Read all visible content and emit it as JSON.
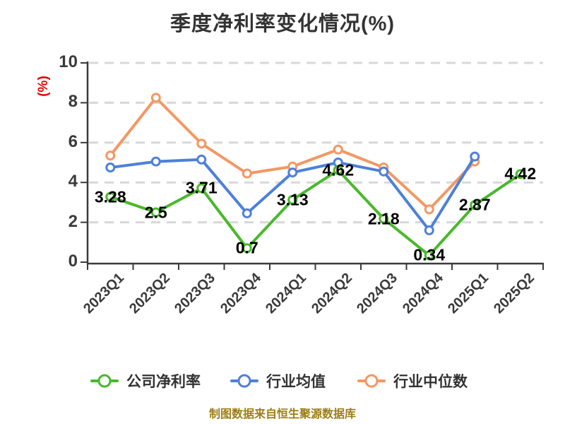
{
  "chart_data": {
    "type": "line",
    "title": "季度净利率变化情况(%)",
    "y_axis_label": "(%)",
    "footer": "制图数据来自恒生聚源数据库",
    "categories": [
      "2023Q1",
      "2023Q2",
      "2023Q3",
      "2023Q4",
      "2024Q1",
      "2024Q2",
      "2024Q3",
      "2024Q4",
      "2025Q1",
      "2025Q2"
    ],
    "series": [
      {
        "name": "公司净利率",
        "color": "#48b92b",
        "values": [
          3.28,
          2.5,
          3.71,
          0.7,
          3.13,
          4.62,
          2.18,
          0.34,
          2.87,
          4.42
        ],
        "data_labels": [
          "3.28",
          "2.5",
          "3.71",
          "0.7",
          "3.13",
          "4.62",
          "2.18",
          "0.34",
          "2.87",
          "4.42"
        ]
      },
      {
        "name": "行业均值",
        "color": "#4d80da",
        "values": [
          4.75,
          5.05,
          5.15,
          2.45,
          4.5,
          5.0,
          4.55,
          1.6,
          5.3,
          null
        ],
        "data_labels": null
      },
      {
        "name": "行业中位数",
        "color": "#f49763",
        "values": [
          5.35,
          8.25,
          5.95,
          4.45,
          4.8,
          5.65,
          4.75,
          2.65,
          5.05,
          null
        ],
        "data_labels": null
      }
    ],
    "ylim": [
      0,
      10
    ],
    "yticks": [
      "0",
      "2",
      "4",
      "6",
      "8",
      "10"
    ],
    "grid": "horizontal-dashed",
    "legend_position": "bottom",
    "marker": "circle-white-fill",
    "colors": {
      "background": "#ffffff",
      "axis": "#3a3a3a",
      "grid": "#d8d8d8",
      "title": "#333333",
      "tick_label": "#3a3a3a",
      "data_label": "#000000",
      "y_unit_label": "#e60000",
      "footer": "#9d7e15",
      "legend_text": "#333333"
    }
  }
}
